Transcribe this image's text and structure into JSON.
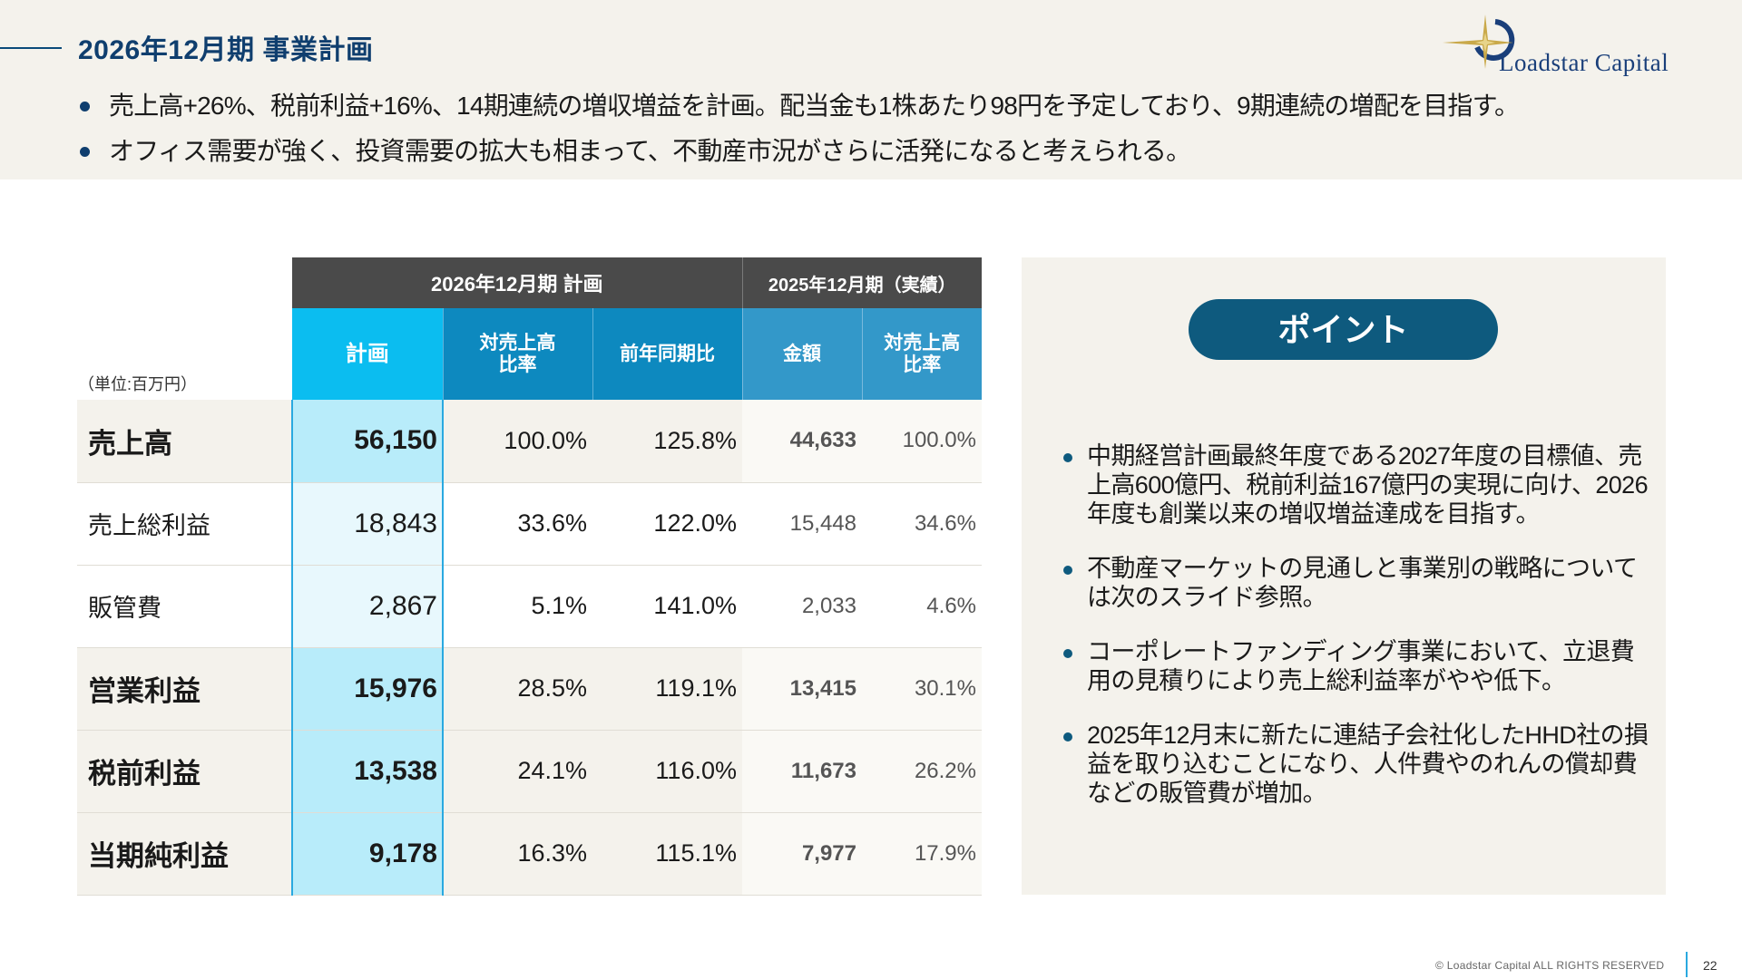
{
  "header": {
    "title": "2026年12月期 事業計画",
    "bullets": [
      "売上高+26%、税前利益+16%、14期連続の増収増益を計画。配当金も1株あたり98円を予定しており、9期連続の増配を目指す。",
      "オフィス需要が強く、投資需要の拡大も相まって、不動産市況がさらに活発になると考えられる。"
    ],
    "logo_text": "Loadstar Capital"
  },
  "table": {
    "unit_label": "（単位:百万円）",
    "group_plan": "2026年12月期 計画",
    "group_actual": "2025年12月期（実績）",
    "col_plan": "計画",
    "col_plan_ratio": "対売上高\n比率",
    "col_yoy": "前年同期比",
    "col_amount": "金額",
    "col_actual_ratio": "対売上高\n比率",
    "rows": [
      {
        "label": "売上高",
        "plan": "56,150",
        "ratio": "100.0%",
        "yoy": "125.8%",
        "actual": "44,633",
        "actual_ratio": "100.0%"
      },
      {
        "label": "売上総利益",
        "plan": "18,843",
        "ratio": "33.6%",
        "yoy": "122.0%",
        "actual": "15,448",
        "actual_ratio": "34.6%"
      },
      {
        "label": "販管費",
        "plan": "2,867",
        "ratio": "5.1%",
        "yoy": "141.0%",
        "actual": "2,033",
        "actual_ratio": "4.6%"
      },
      {
        "label": "営業利益",
        "plan": "15,976",
        "ratio": "28.5%",
        "yoy": "119.1%",
        "actual": "13,415",
        "actual_ratio": "30.1%"
      },
      {
        "label": "税前利益",
        "plan": "13,538",
        "ratio": "24.1%",
        "yoy": "116.0%",
        "actual": "11,673",
        "actual_ratio": "26.2%"
      },
      {
        "label": "当期純利益",
        "plan": "9,178",
        "ratio": "16.3%",
        "yoy": "115.1%",
        "actual": "7,977",
        "actual_ratio": "17.9%"
      }
    ]
  },
  "point": {
    "title": "ポイント",
    "items": [
      "中期経営計画最終年度である2027年度の目標値、売上高600億円、税前利益167億円の実現に向け、2026年度も創業以来の増収増益達成を目指す。",
      "不動産マーケットの見通しと事業別の戦略については次のスライド参照。",
      "コーポレートファンディング事業において、立退費用の見積りにより売上総利益率がやや低下。",
      "2025年12月末に新たに連結子会社化したHHD社の損益を取り込むことになり、人件費やのれんの償却費などの販管費が増加。"
    ]
  },
  "footer": {
    "copyright": "© Loadstar Capital ALL RIGHTS RESERVED",
    "page": "22"
  },
  "colors": {
    "title": "#0f3e6e",
    "plan_header": "#0bbdf0",
    "dark_header": "#4a4a4a",
    "pill": "#0e5a7e",
    "panel_bg": "#f4f2ec"
  },
  "icons": [
    "logo-star-icon"
  ]
}
